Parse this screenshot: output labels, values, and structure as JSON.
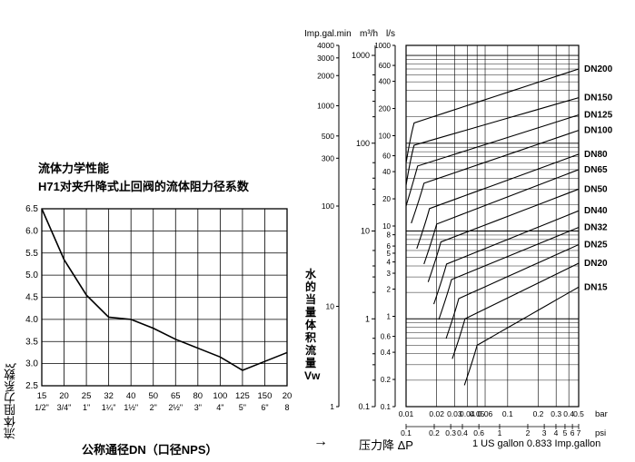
{
  "colors": {
    "bg": "#ffffff",
    "line": "#000000",
    "grid": "#222222",
    "text": "#000000"
  },
  "left_chart": {
    "type": "line",
    "title_line1": "流体力学性能",
    "title_line2": "H71对夹升降式止回阀的流体阻力径系数",
    "title_fontsize": 13,
    "y_axis_label": "流体阻力系数ξ",
    "x_axis_label": "公称通径DN（口径NPS）",
    "label_fontsize": 13,
    "x_ticks_top": [
      "15",
      "20",
      "25",
      "32",
      "40",
      "50",
      "65",
      "80",
      "100",
      "125",
      "150",
      "20"
    ],
    "x_ticks_bot": [
      "1/2\"",
      "3/4\"",
      "1\"",
      "1¼\"",
      "1½\"",
      "2\"",
      "2½\"",
      "3\"",
      "4\"",
      "5\"",
      "6\"",
      "8"
    ],
    "y_ticks": [
      "2.5",
      "3.0",
      "3.5",
      "4.0",
      "4.5",
      "5.0",
      "5.5",
      "6.0",
      "6.5"
    ],
    "ylim": [
      2.5,
      6.5
    ],
    "xlim_index": [
      0,
      11
    ],
    "tick_fontsize": 10,
    "line_width": 1.4,
    "grid_width": 1,
    "series": [
      {
        "xi": 0,
        "y": 6.5
      },
      {
        "xi": 1,
        "y": 5.35
      },
      {
        "xi": 2,
        "y": 4.55
      },
      {
        "xi": 3,
        "y": 4.05
      },
      {
        "xi": 4,
        "y": 4.0
      },
      {
        "xi": 5,
        "y": 3.8
      },
      {
        "xi": 6,
        "y": 3.55
      },
      {
        "xi": 7,
        "y": 3.35
      },
      {
        "xi": 8,
        "y": 3.15
      },
      {
        "xi": 9,
        "y": 2.85
      },
      {
        "xi": 10,
        "y": 3.05
      },
      {
        "xi": 11,
        "y": 3.25
      }
    ]
  },
  "right_chart": {
    "type": "loglog-family",
    "title_fontsize": 11,
    "axis_col1_label": "Imp.gal.min",
    "axis_col2_label": "m³/h",
    "axis_col3_label": "l/s",
    "x_bottom_label": "bar",
    "x_bottom2_label": "psi",
    "x_axis_title": "压力降 ΔP",
    "between_axis_label": "水的当量体积流量Vw",
    "conversion_note": "1 US gallon 0.833 Imp.gallon",
    "y_col2_ticks_major": [
      0.1,
      1,
      10,
      100,
      1000
    ],
    "y_col2_ticks_minor_labeled": {
      "0.1": [
        0.2,
        0.3,
        0.4,
        0.6
      ],
      "1": [
        2,
        3,
        4,
        6
      ],
      "10": [
        20,
        30,
        40,
        60
      ],
      "100": [
        200,
        300,
        400,
        600
      ]
    },
    "y_col3_labeled": [
      0.1,
      0.2,
      0.4,
      0.6,
      1,
      2,
      3,
      4,
      5,
      6,
      8,
      10,
      20,
      40,
      60,
      100,
      200,
      400,
      600,
      1000
    ],
    "y_col1_labeled": [
      1,
      10,
      100,
      300,
      500,
      1000,
      2000,
      3000,
      4000
    ],
    "x_bar_range": [
      0.01,
      0.5
    ],
    "x_bar_ticks": [
      0.01,
      0.02,
      0.03,
      0.04,
      0.05,
      0.06,
      0.1,
      0.2,
      0.3,
      0.4,
      0.5
    ],
    "x_psi_ticks": [
      0.1,
      0.2,
      0.3,
      0.4,
      0.6,
      1,
      2,
      3,
      4,
      5,
      6,
      7
    ],
    "line_width": 1.1,
    "grid_width": 0.7,
    "dn_labels": [
      "DN200",
      "DN150",
      "DN125",
      "DN100",
      "DN80",
      "DN65",
      "DN50",
      "DN40",
      "DN32",
      "DN25",
      "DN20",
      "DN15"
    ],
    "dn_curves_comment": "Each curve: y (m3/h) at x=0.5 bar, then follows power-law toward a knee near low ΔP",
    "dn_anchor_y_at_xmax": [
      700,
      330,
      210,
      140,
      75,
      50,
      30,
      17,
      11,
      7,
      4.3,
      2.3
    ],
    "dn_knee_x": [
      0.012,
      0.012,
      0.013,
      0.015,
      0.017,
      0.02,
      0.022,
      0.025,
      0.028,
      0.033,
      0.038,
      0.05
    ],
    "dn_knee_y": [
      170,
      95,
      55,
      35,
      18,
      12,
      7.5,
      4.2,
      2.8,
      1.7,
      1.0,
      0.5
    ]
  },
  "arrow_label": "→"
}
